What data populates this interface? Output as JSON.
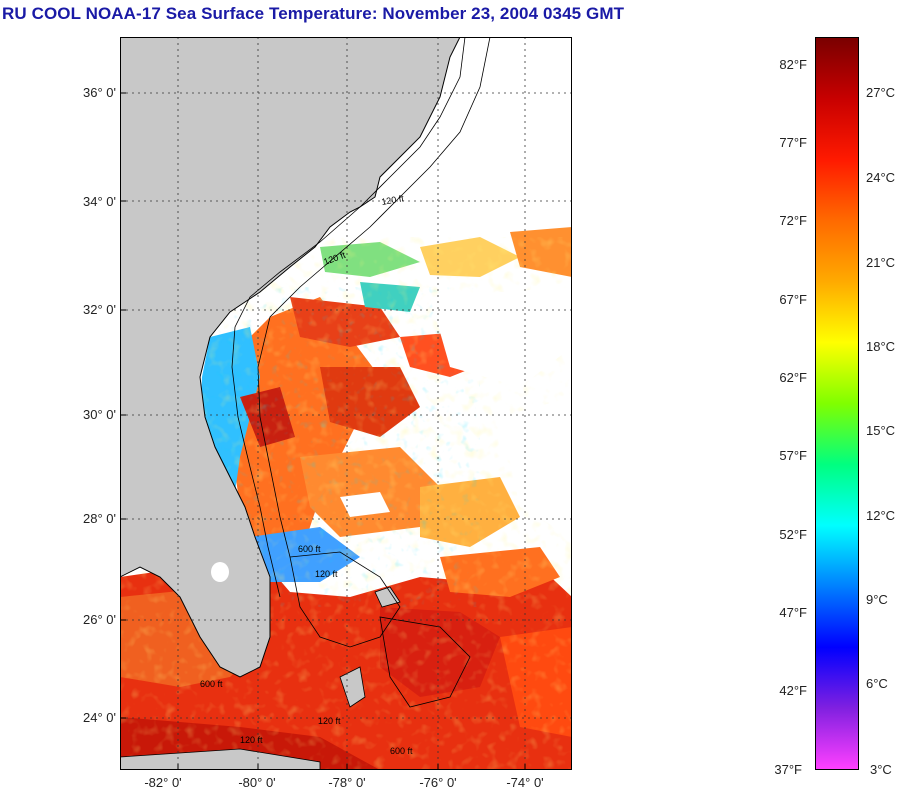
{
  "title": "RU COOL  NOAA-17  Sea Surface Temperature:  November 23, 2004 0345 GMT",
  "map": {
    "lat_ticks": [
      "36° 0'",
      "34° 0'",
      "32° 0'",
      "30° 0'",
      "28° 0'",
      "26° 0'",
      "24° 0'"
    ],
    "lon_ticks": [
      "-82° 0'",
      "-80° 0'",
      "-78° 0'",
      "-76° 0'",
      "-74° 0'"
    ],
    "contour_labels": [
      "120 ft",
      "120 ft",
      "600 ft",
      "120 ft",
      "600 ft",
      "120 ft",
      "600 ft",
      "120 ft"
    ],
    "land_color": "#c8c8c8",
    "cloud_color": "#ffffff"
  },
  "colorbar": {
    "fahrenheit": [
      "82°F",
      "77°F",
      "72°F",
      "67°F",
      "62°F",
      "57°F",
      "52°F",
      "47°F",
      "42°F",
      "37°F"
    ],
    "celsius": [
      "27°C",
      "24°C",
      "21°C",
      "18°C",
      "15°C",
      "12°C",
      "9°C",
      "6°C",
      "3°C"
    ],
    "stops": [
      "#7a0000",
      "#c80000",
      "#ff1a00",
      "#ff6a00",
      "#ffaa00",
      "#ffff00",
      "#80ff00",
      "#00ff80",
      "#00ffff",
      "#0080ff",
      "#0000ff",
      "#8020e0",
      "#ff40ff"
    ]
  }
}
